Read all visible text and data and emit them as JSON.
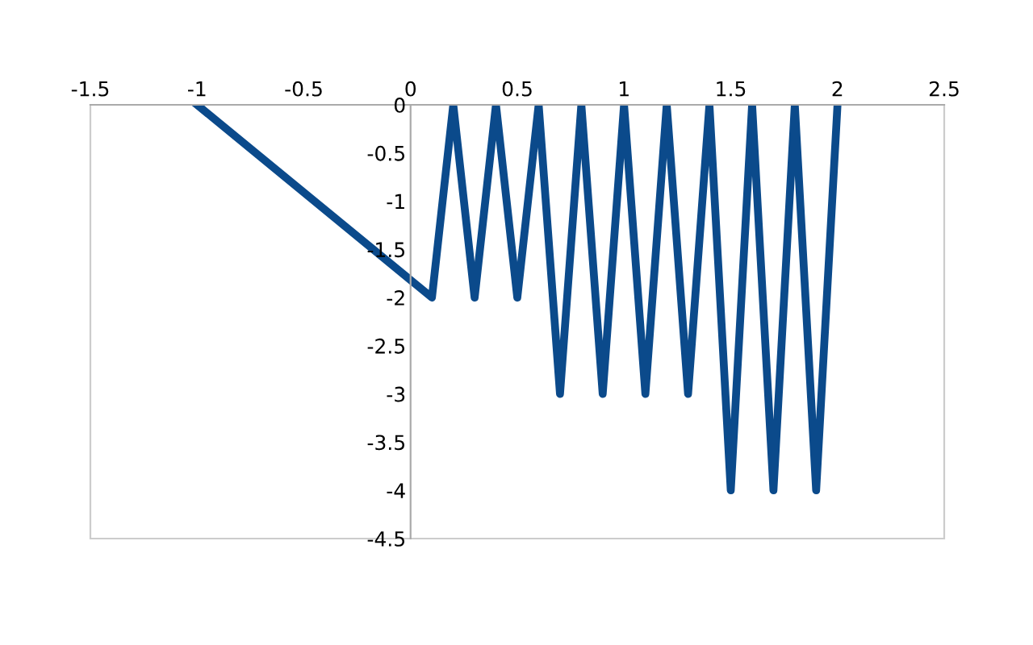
{
  "chart_data": {
    "type": "line",
    "x": [
      -1,
      0.1,
      0.2,
      0.3,
      0.4,
      0.5,
      0.6,
      0.7,
      0.8,
      0.9,
      1.0,
      1.1,
      1.2,
      1.3,
      1.4,
      1.5,
      1.6,
      1.7,
      1.8,
      1.9,
      2.0
    ],
    "series": [
      {
        "color": "#0b4a8b",
        "values": [
          0,
          -2,
          0,
          -2,
          0,
          -2,
          0,
          -3,
          0,
          -3,
          0,
          -3,
          0,
          -3,
          0,
          -4,
          0,
          -4,
          0,
          -4,
          0
        ]
      }
    ],
    "xlim": [
      -1.5,
      2.5
    ],
    "xticks": [
      -1.5,
      -1,
      -0.5,
      0,
      0.5,
      1,
      1.5,
      2,
      2.5
    ],
    "ylim": [
      -4.5,
      0
    ],
    "yticks": [
      0,
      -0.5,
      -1,
      -1.5,
      -2,
      -2.5,
      -3,
      -3.5,
      -4,
      -4.5
    ],
    "grid": false,
    "marker": "none",
    "line_style": "solid"
  }
}
